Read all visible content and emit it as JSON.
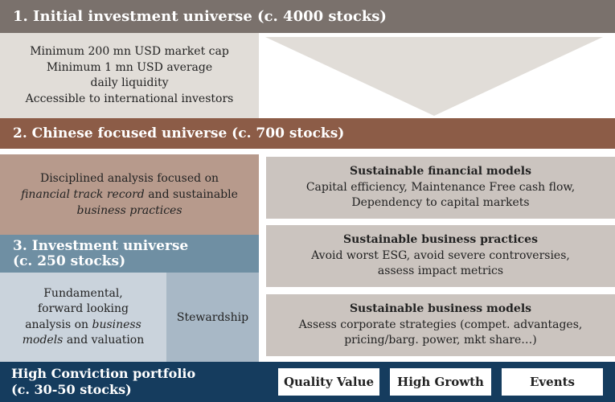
{
  "stage1": {
    "title": "1. Initial investment universe (c. 4000 stocks)",
    "criteria": [
      "Minimum 200 mn USD market cap",
      "Minimum 1 mn USD average",
      "daily liquidity",
      "Accessible to international investors"
    ]
  },
  "stage2": {
    "title": "2. Chinese focused universe (c. 700 stocks)",
    "analysis": {
      "line1": "Disciplined analysis focused on",
      "line2_italic": "financial track record",
      "line2_rest": " and sustainable",
      "line3_italic": "business practices"
    }
  },
  "stage3": {
    "title_line1": "3. Investment universe",
    "title_line2": "(c. 250 stocks)",
    "fundamental": {
      "line1": "Fundamental,",
      "line2": "forward looking",
      "line3_pre": "analysis on ",
      "line3_italic": "business",
      "line4_italic": "models",
      "line4_rest": " and valuation"
    },
    "stewardship": "Stewardship"
  },
  "filters": [
    {
      "title": "Sustainable financial models",
      "line1": "Capital efficiency, Maintenance Free cash flow,",
      "line2": "Dependency to capital markets"
    },
    {
      "title": "Sustainable business practices",
      "line1": "Avoid worst ESG, avoid severe controversies,",
      "line2": "assess impact metrics"
    },
    {
      "title": "Sustainable business models",
      "line1": "Assess corporate strategies (compet. advantages,",
      "line2": "pricing/barg. power, mkt share…)"
    }
  ],
  "portfolio": {
    "title_line1": "High Conviction portfolio",
    "title_line2": "(c. 30-50 stocks)",
    "styles": [
      "Quality Value",
      "High Growth",
      "Events"
    ]
  },
  "colors": {
    "stage1": "#7a716c",
    "stage2": "#8c5c47",
    "stage3": "#6f8fa3",
    "portfolio": "#153c5e",
    "funnel": "#e1ddd8"
  }
}
